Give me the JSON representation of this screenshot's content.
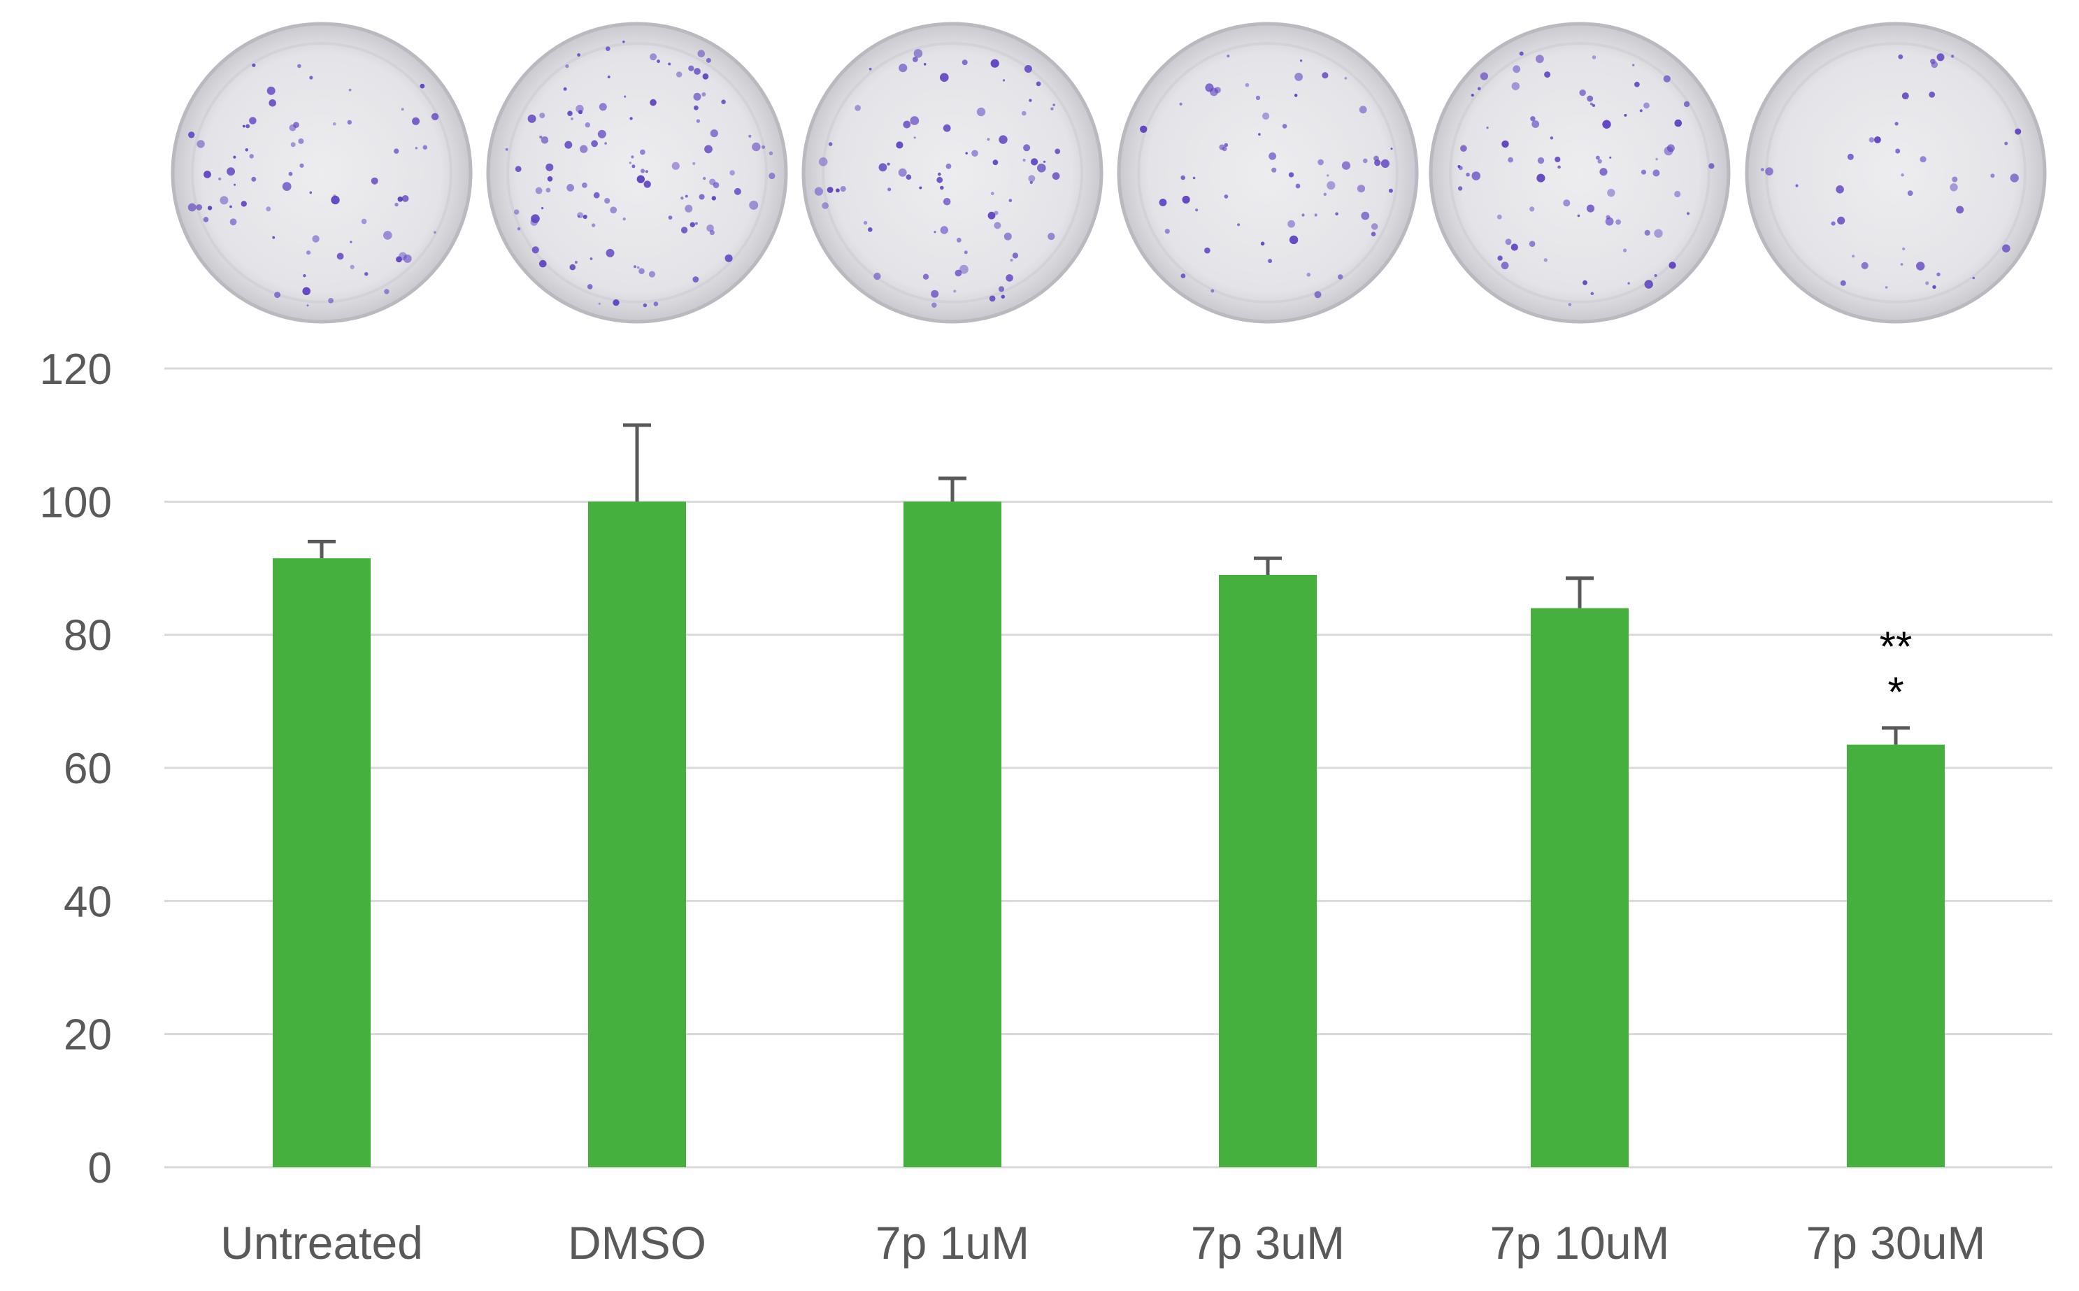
{
  "chart_data": {
    "type": "bar",
    "title": "",
    "xlabel": "",
    "ylabel": "",
    "categories": [
      "Untreated",
      "DMSO",
      "7p 1uM",
      "7p 3uM",
      "7p 10uM",
      "7p 30uM"
    ],
    "values": [
      91.5,
      100,
      100,
      89,
      84,
      63.5
    ],
    "error": [
      2.5,
      11.5,
      3.5,
      2.5,
      4.5,
      2.5
    ],
    "annotations": [
      "",
      "",
      "",
      "",
      "",
      "***"
    ],
    "ylim": [
      0,
      120
    ],
    "yticks": [
      0,
      20,
      40,
      60,
      80,
      100,
      120
    ],
    "grid": true,
    "legend": "none",
    "bar_color": "#45b03e",
    "error_bar_color": "#595959",
    "gridline_color": "#d9d9d9",
    "tick_label_color": "#595959",
    "plate_image_color": "#e4e4e8",
    "colony_color": "#5b3fc0"
  }
}
